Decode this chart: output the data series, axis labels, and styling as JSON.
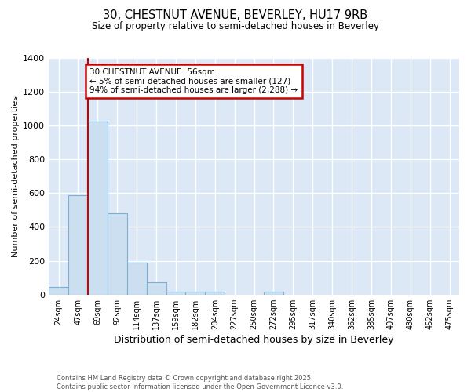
{
  "title": "30, CHESTNUT AVENUE, BEVERLEY, HU17 9RB",
  "subtitle": "Size of property relative to semi-detached houses in Beverley",
  "xlabel": "Distribution of semi-detached houses by size in Beverley",
  "ylabel": "Number of semi-detached properties",
  "footer_line1": "Contains HM Land Registry data © Crown copyright and database right 2025.",
  "footer_line2": "Contains public sector information licensed under the Open Government Licence v3.0.",
  "bin_labels": [
    "24sqm",
    "47sqm",
    "69sqm",
    "92sqm",
    "114sqm",
    "137sqm",
    "159sqm",
    "182sqm",
    "204sqm",
    "227sqm",
    "250sqm",
    "272sqm",
    "295sqm",
    "317sqm",
    "340sqm",
    "362sqm",
    "385sqm",
    "407sqm",
    "430sqm",
    "452sqm",
    "475sqm"
  ],
  "bar_values": [
    45,
    590,
    1025,
    480,
    190,
    72,
    18,
    18,
    18,
    0,
    0,
    18,
    0,
    0,
    0,
    0,
    0,
    0,
    0,
    0,
    0
  ],
  "bar_color": "#ccdff0",
  "bar_edge_color": "#7bafd4",
  "ylim": [
    0,
    1400
  ],
  "yticks": [
    0,
    200,
    400,
    600,
    800,
    1000,
    1200,
    1400
  ],
  "vline_x": 1.5,
  "vline_color": "#cc0000",
  "annotation_text_line1": "30 CHESTNUT AVENUE: 56sqm",
  "annotation_text_line2": "← 5% of semi-detached houses are smaller (127)",
  "annotation_text_line3": "94% of semi-detached houses are larger (2,288) →",
  "annotation_box_color": "#cc0000",
  "fig_background_color": "#ffffff",
  "plot_background_color": "#dce8f5"
}
